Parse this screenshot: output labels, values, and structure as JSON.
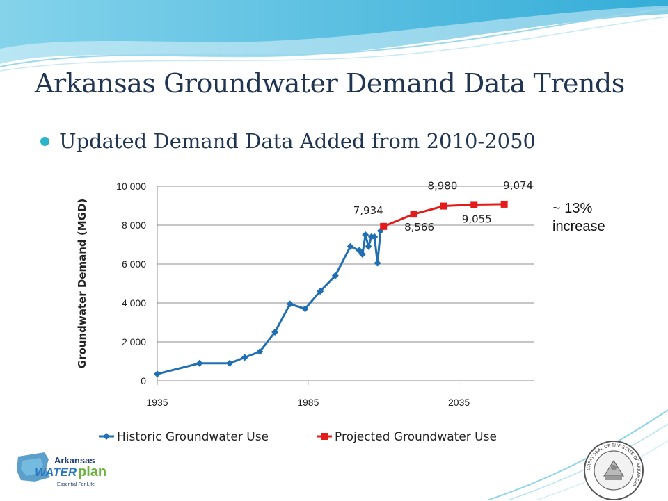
{
  "slide": {
    "title": "Arkansas Groundwater Demand Data Trends",
    "bullet": "Updated Demand Data Added from 2010-2050",
    "note_line1": "~ 13%",
    "note_line2": "increase"
  },
  "logo": {
    "text_arkansas": "Arkansas",
    "text_water": "WATER",
    "text_plan": "plan",
    "tagline": "Essential For Life"
  },
  "seal": {
    "ring_text": "GREAT SEAL OF THE STATE OF ARKANSAS"
  },
  "colors": {
    "historic": "#1f6fb2",
    "projected": "#e31b1b",
    "title": "#1f3552",
    "bullet": "#2bb5c8",
    "wave": "#5fc3e0"
  },
  "chart_data": {
    "type": "line",
    "title": "",
    "xlabel": "",
    "ylabel": "Groundwater Demand (MGD)",
    "xlim": [
      1935,
      2060
    ],
    "ylim": [
      0,
      10000
    ],
    "x_ticks": [
      1935,
      1985,
      2035
    ],
    "y_ticks": [
      0,
      2000,
      4000,
      6000,
      8000,
      10000
    ],
    "y_tick_labels": [
      "0",
      "2 000",
      "4 000",
      "6 000",
      "8 000",
      "10 000"
    ],
    "grid": "horizontal",
    "legend": "bottom",
    "series": [
      {
        "name": "Historic Groundwater Use",
        "color": "#1f6fb2",
        "marker": "diamond",
        "points": [
          [
            1935,
            350
          ],
          [
            1949,
            900
          ],
          [
            1959,
            900
          ],
          [
            1964,
            1200
          ],
          [
            1969,
            1500
          ],
          [
            1974,
            2500
          ],
          [
            1979,
            3950
          ],
          [
            1984,
            3700
          ],
          [
            1989,
            4600
          ],
          [
            1994,
            5400
          ],
          [
            1999,
            6900
          ],
          [
            2002,
            6700
          ],
          [
            2003,
            6500
          ],
          [
            2004,
            7500
          ],
          [
            2005,
            6900
          ],
          [
            2006,
            7400
          ],
          [
            2007,
            7400
          ],
          [
            2008,
            6050
          ],
          [
            2009,
            7700
          ]
        ]
      },
      {
        "name": "Projected Groundwater Use",
        "color": "#e31b1b",
        "marker": "square",
        "points": [
          [
            2010,
            7934
          ],
          [
            2020,
            8566
          ],
          [
            2030,
            8980
          ],
          [
            2040,
            9055
          ],
          [
            2050,
            9074
          ]
        ]
      }
    ],
    "data_labels": [
      {
        "x": 2010,
        "y": 7934,
        "text": "7,934"
      },
      {
        "x": 2020,
        "y": 8566,
        "text": "8,566"
      },
      {
        "x": 2030,
        "y": 8980,
        "text": "8,980"
      },
      {
        "x": 2040,
        "y": 9055,
        "text": "9,055"
      },
      {
        "x": 2050,
        "y": 9074,
        "text": "9,074"
      }
    ]
  }
}
